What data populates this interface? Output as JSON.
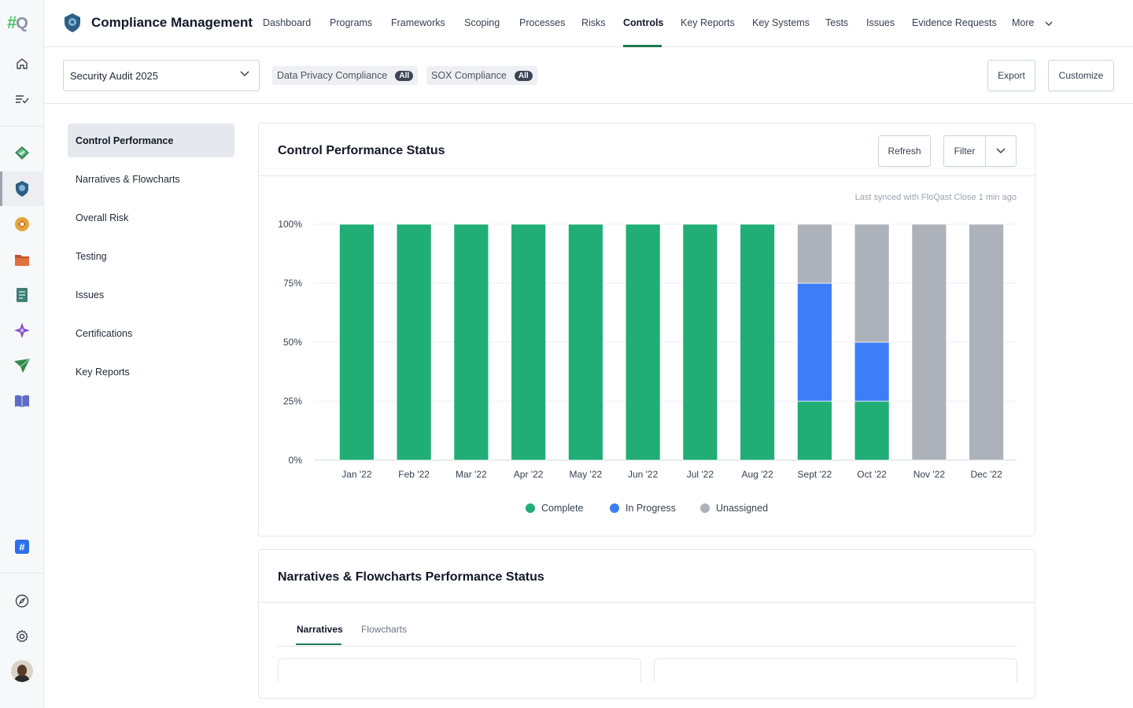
{
  "rail": {
    "logo_hash": "#",
    "logo_q": "Q",
    "slack_badge": "#"
  },
  "app": {
    "title": "Compliance Management"
  },
  "nav": {
    "items": [
      "Dashboard",
      "Programs",
      "Frameworks",
      "Scoping",
      "Processes",
      "Risks",
      "Controls",
      "Key Reports",
      "Key Systems",
      "Tests",
      "Issues",
      "Evidence Requests",
      "More"
    ],
    "active": "Controls"
  },
  "filters": {
    "audit_select": "Security Audit 2025",
    "chips": [
      {
        "label": "Data Privacy Compliance",
        "badge": "All"
      },
      {
        "label": "SOX Compliance",
        "badge": "All"
      }
    ],
    "export_label": "Export",
    "customize_label": "Customize"
  },
  "subnav": {
    "items": [
      "Control Performance",
      "Narratives & Flowcharts",
      "Overall Risk",
      "Testing",
      "Issues",
      "Certifications",
      "Key Reports"
    ],
    "active": "Control Performance"
  },
  "control_card": {
    "title": "Control Performance Status",
    "refresh_label": "Refresh",
    "filter_label": "Filter",
    "synced": "Last synced with FloQast Close 1 min ago"
  },
  "chart_data": {
    "type": "bar",
    "stacked": true,
    "categories": [
      "Jan '22",
      "Feb '22",
      "Mar '22",
      "Apr '22",
      "May '22",
      "Jun '22",
      "Jul '22",
      "Aug '22",
      "Sept '22",
      "Oct '22",
      "Nov '22",
      "Dec '22"
    ],
    "series": [
      {
        "name": "Complete",
        "color": "#20ad76",
        "values": [
          100,
          100,
          100,
          100,
          100,
          100,
          100,
          100,
          25,
          25,
          0,
          0
        ]
      },
      {
        "name": "In Progress",
        "color": "#3d7ef6",
        "values": [
          0,
          0,
          0,
          0,
          0,
          0,
          0,
          0,
          50,
          25,
          0,
          0
        ]
      },
      {
        "name": "Unassigned",
        "color": "#adb1b9",
        "values": [
          0,
          0,
          0,
          0,
          0,
          0,
          0,
          0,
          25,
          50,
          100,
          100
        ]
      }
    ],
    "yticks": [
      "0%",
      "25%",
      "50%",
      "75%",
      "100%"
    ],
    "ylim": [
      0,
      100
    ],
    "grid": true,
    "legend_position": "bottom"
  },
  "narratives_card": {
    "title": "Narratives & Flowcharts Performance Status",
    "tabs": [
      "Narratives",
      "Flowcharts"
    ],
    "active_tab": "Narratives"
  }
}
